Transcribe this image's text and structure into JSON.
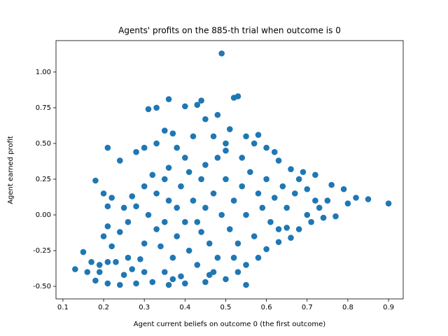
{
  "chart_data": {
    "type": "scatter",
    "title": "Agents' profits on the 885-th trial when outcome is 0",
    "xlabel": "Agent current beliefs on outcome 0 (the first outcome)",
    "ylabel": "Agent earned profit",
    "color": "#1f77b4",
    "xlim": [
      0.083,
      0.936
    ],
    "ylim": [
      -0.588,
      1.22
    ],
    "xticks": [
      0.1,
      0.2,
      0.3,
      0.4,
      0.5,
      0.6,
      0.7,
      0.8,
      0.9
    ],
    "yticks": [
      {
        "value": -0.5,
        "label": "-0.50"
      },
      -0.25,
      {
        "value": 0,
        "label": "0.00"
      },
      0.25,
      {
        "value": 0.5,
        "label": "0.50"
      },
      0.75,
      {
        "value": 1,
        "label": "1.00"
      }
    ],
    "x": [
      0.49,
      0.36,
      0.53,
      0.52,
      0.44,
      0.43,
      0.4,
      0.31,
      0.33,
      0.48,
      0.45,
      0.35,
      0.37,
      0.28,
      0.3,
      0.21,
      0.33,
      0.42,
      0.51,
      0.55,
      0.58,
      0.57,
      0.5,
      0.47,
      0.38,
      0.24,
      0.18,
      0.2,
      0.22,
      0.21,
      0.25,
      0.27,
      0.3,
      0.32,
      0.36,
      0.4,
      0.45,
      0.5,
      0.54,
      0.6,
      0.62,
      0.63,
      0.66,
      0.69,
      0.72,
      0.76,
      0.79,
      0.82,
      0.85,
      0.9,
      0.8,
      0.75,
      0.73,
      0.7,
      0.74,
      0.77,
      0.71,
      0.68,
      0.65,
      0.66,
      0.63,
      0.6,
      0.58,
      0.55,
      0.53,
      0.5,
      0.55,
      0.45,
      0.4,
      0.36,
      0.32,
      0.28,
      0.24,
      0.21,
      0.18,
      0.13,
      0.15,
      0.17,
      0.19,
      0.21,
      0.22,
      0.23,
      0.2,
      0.21,
      0.19,
      0.16,
      0.25,
      0.27,
      0.29,
      0.3,
      0.33,
      0.31,
      0.35,
      0.34,
      0.37,
      0.38,
      0.4,
      0.41,
      0.42,
      0.43,
      0.44,
      0.45,
      0.46,
      0.47,
      0.48,
      0.49,
      0.5,
      0.51,
      0.52,
      0.53,
      0.54,
      0.55,
      0.56,
      0.57,
      0.58,
      0.59,
      0.6,
      0.61,
      0.62,
      0.63,
      0.64,
      0.65,
      0.67,
      0.68,
      0.7,
      0.72,
      0.39,
      0.36,
      0.33,
      0.28,
      0.26,
      0.24,
      0.35,
      0.39,
      0.47,
      0.52,
      0.44,
      0.41,
      0.48,
      0.35,
      0.38,
      0.43,
      0.46,
      0.37,
      0.3,
      0.26
    ],
    "values": [
      1.13,
      0.81,
      0.83,
      0.82,
      0.8,
      0.77,
      0.76,
      0.74,
      0.75,
      0.7,
      0.67,
      0.59,
      0.57,
      0.44,
      0.47,
      0.47,
      0.5,
      0.55,
      0.6,
      0.55,
      0.56,
      0.5,
      0.5,
      0.55,
      0.47,
      0.38,
      0.24,
      0.15,
      0.12,
      0.06,
      0.05,
      0.13,
      0.2,
      0.28,
      0.33,
      0.4,
      0.35,
      0.45,
      0.4,
      0.47,
      0.44,
      0.38,
      0.32,
      0.3,
      0.28,
      0.21,
      0.18,
      0.12,
      0.11,
      0.08,
      0.08,
      0.1,
      0.05,
      0.0,
      -0.02,
      -0.01,
      -0.05,
      -0.1,
      -0.09,
      -0.16,
      -0.19,
      -0.24,
      -0.3,
      -0.35,
      -0.4,
      -0.45,
      -0.49,
      -0.47,
      -0.48,
      -0.49,
      -0.47,
      -0.48,
      -0.49,
      -0.48,
      -0.46,
      -0.38,
      -0.26,
      -0.33,
      -0.35,
      -0.33,
      -0.22,
      -0.33,
      -0.15,
      -0.08,
      -0.4,
      -0.4,
      -0.42,
      -0.38,
      -0.31,
      -0.2,
      -0.1,
      0.0,
      -0.05,
      -0.22,
      -0.3,
      -0.15,
      -0.05,
      -0.25,
      0.1,
      -0.35,
      -0.12,
      0.05,
      -0.2,
      0.15,
      -0.3,
      0.0,
      0.25,
      -0.1,
      0.1,
      -0.2,
      0.2,
      0.0,
      0.3,
      -0.15,
      0.15,
      0.05,
      0.25,
      -0.05,
      0.12,
      -0.1,
      0.2,
      0.05,
      0.15,
      0.25,
      0.18,
      0.1,
      0.2,
      0.1,
      0.15,
      0.06,
      -0.05,
      -0.12,
      -0.4,
      -0.43,
      -0.4,
      -0.3,
      0.25,
      0.3,
      0.4,
      0.25,
      0.05,
      -0.05,
      -0.42,
      -0.45,
      -0.4,
      -0.3
    ]
  }
}
